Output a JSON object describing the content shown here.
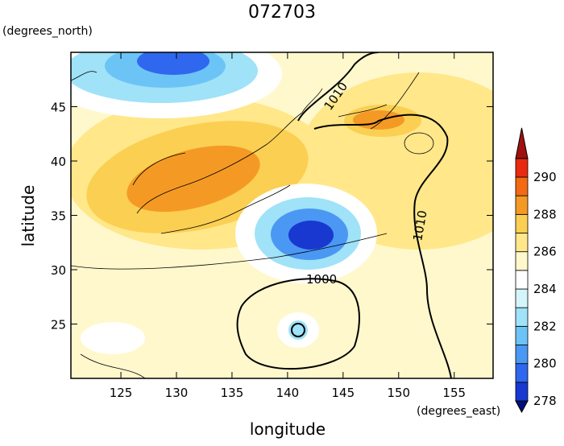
{
  "title": "072703",
  "y_axis": {
    "units": "(degrees_north)",
    "label": "latitude",
    "lim": [
      20,
      50
    ],
    "ticks": [
      25,
      30,
      35,
      40,
      45
    ]
  },
  "x_axis": {
    "units": "(degrees_east)",
    "label": "longitude",
    "lim": [
      120.5,
      158.5
    ],
    "ticks": [
      125,
      130,
      135,
      140,
      145,
      150,
      155
    ]
  },
  "colorbar": {
    "ticks": [
      278,
      280,
      282,
      284,
      286,
      288,
      290
    ],
    "colors": [
      "#00107a",
      "#1838d0",
      "#2f68ee",
      "#4a98f4",
      "#6cc4f6",
      "#a0e2f8",
      "#d4f6fb",
      "#ffffff",
      "#fff8cc",
      "#ffe78a",
      "#fbcf52",
      "#f49a24",
      "#f36a12",
      "#ea2a10",
      "#a01010"
    ]
  },
  "contour_labels": [
    "1010",
    "1000",
    "1010"
  ]
}
